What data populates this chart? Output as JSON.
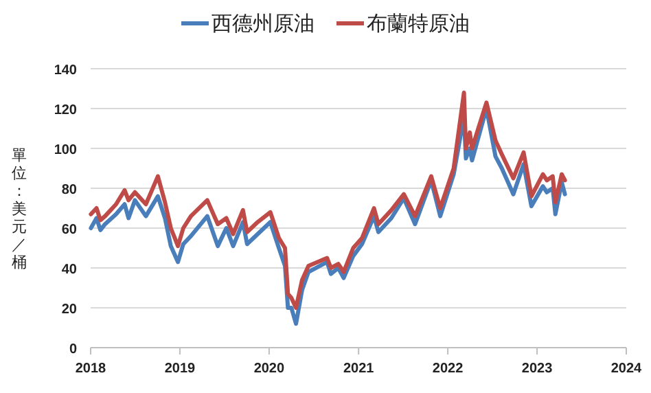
{
  "chart_data": {
    "type": "line",
    "ylabel": "單位：美元／桶",
    "legend": "top",
    "grid": "y",
    "line_style": "solid",
    "marker": "none",
    "xlim": [
      "2018-01-01",
      "2024-01-01"
    ],
    "ylim": [
      0,
      140
    ],
    "yticks": [
      0,
      20,
      40,
      60,
      80,
      100,
      120,
      140
    ],
    "xticks": [
      {
        "value": "2018-01-01",
        "label": "2018"
      },
      {
        "value": "2019-01-01",
        "label": "2019"
      },
      {
        "value": "2020-01-01",
        "label": "2020"
      },
      {
        "value": "2021-01-01",
        "label": "2021"
      },
      {
        "value": "2022-01-01",
        "label": "2022"
      },
      {
        "value": "2023-01-01",
        "label": "2023"
      },
      {
        "value": "2024-01-01",
        "label": "2024"
      }
    ],
    "x": [
      "2018-01-02",
      "2018-01-25",
      "2018-02-10",
      "2018-03-01",
      "2018-04-15",
      "2018-05-20",
      "2018-06-05",
      "2018-07-01",
      "2018-08-15",
      "2018-10-03",
      "2018-11-01",
      "2018-11-25",
      "2018-12-24",
      "2019-01-15",
      "2019-02-15",
      "2019-04-23",
      "2019-06-05",
      "2019-07-10",
      "2019-08-07",
      "2019-09-16",
      "2019-10-03",
      "2019-11-15",
      "2020-01-06",
      "2020-02-10",
      "2020-03-06",
      "2020-03-18",
      "2020-04-01",
      "2020-04-20",
      "2020-05-15",
      "2020-06-10",
      "2020-08-25",
      "2020-09-10",
      "2020-10-10",
      "2020-11-01",
      "2020-12-10",
      "2021-01-15",
      "2021-03-05",
      "2021-03-23",
      "2021-05-15",
      "2021-07-05",
      "2021-08-20",
      "2021-10-25",
      "2021-12-01",
      "2022-01-25",
      "2022-03-08",
      "2022-03-16",
      "2022-04-01",
      "2022-04-10",
      "2022-06-08",
      "2022-07-15",
      "2022-08-10",
      "2022-09-26",
      "2022-11-07",
      "2022-12-09",
      "2023-01-25",
      "2023-02-10",
      "2023-03-06",
      "2023-03-17",
      "2023-04-12",
      "2023-04-25"
    ],
    "series": [
      {
        "name": "西德州原油",
        "color": "#4a7ebb",
        "values": [
          60,
          65,
          59,
          62,
          67,
          72,
          65,
          74,
          66,
          76,
          65,
          51,
          43,
          52,
          56,
          66,
          51,
          60,
          51,
          63,
          52,
          57,
          63,
          50,
          41,
          20,
          20,
          12,
          29,
          38,
          43,
          37,
          40,
          35,
          46,
          52,
          66,
          58,
          65,
          75,
          62,
          84,
          66,
          87,
          116,
          95,
          100,
          94,
          120,
          96,
          90,
          77,
          92,
          71,
          81,
          78,
          80,
          67,
          83,
          77
        ]
      },
      {
        "name": "布蘭特原油",
        "color": "#be4b48",
        "values": [
          67,
          70,
          64,
          66,
          72,
          79,
          74,
          78,
          72,
          86,
          73,
          60,
          51,
          60,
          66,
          74,
          62,
          65,
          57,
          69,
          58,
          63,
          68,
          55,
          50,
          27,
          25,
          20,
          34,
          41,
          45,
          40,
          42,
          38,
          50,
          55,
          70,
          62,
          69,
          77,
          66,
          86,
          70,
          90,
          128,
          100,
          108,
          100,
          123,
          104,
          97,
          85,
          98,
          76,
          87,
          84,
          86,
          73,
          87,
          84
        ]
      }
    ]
  }
}
